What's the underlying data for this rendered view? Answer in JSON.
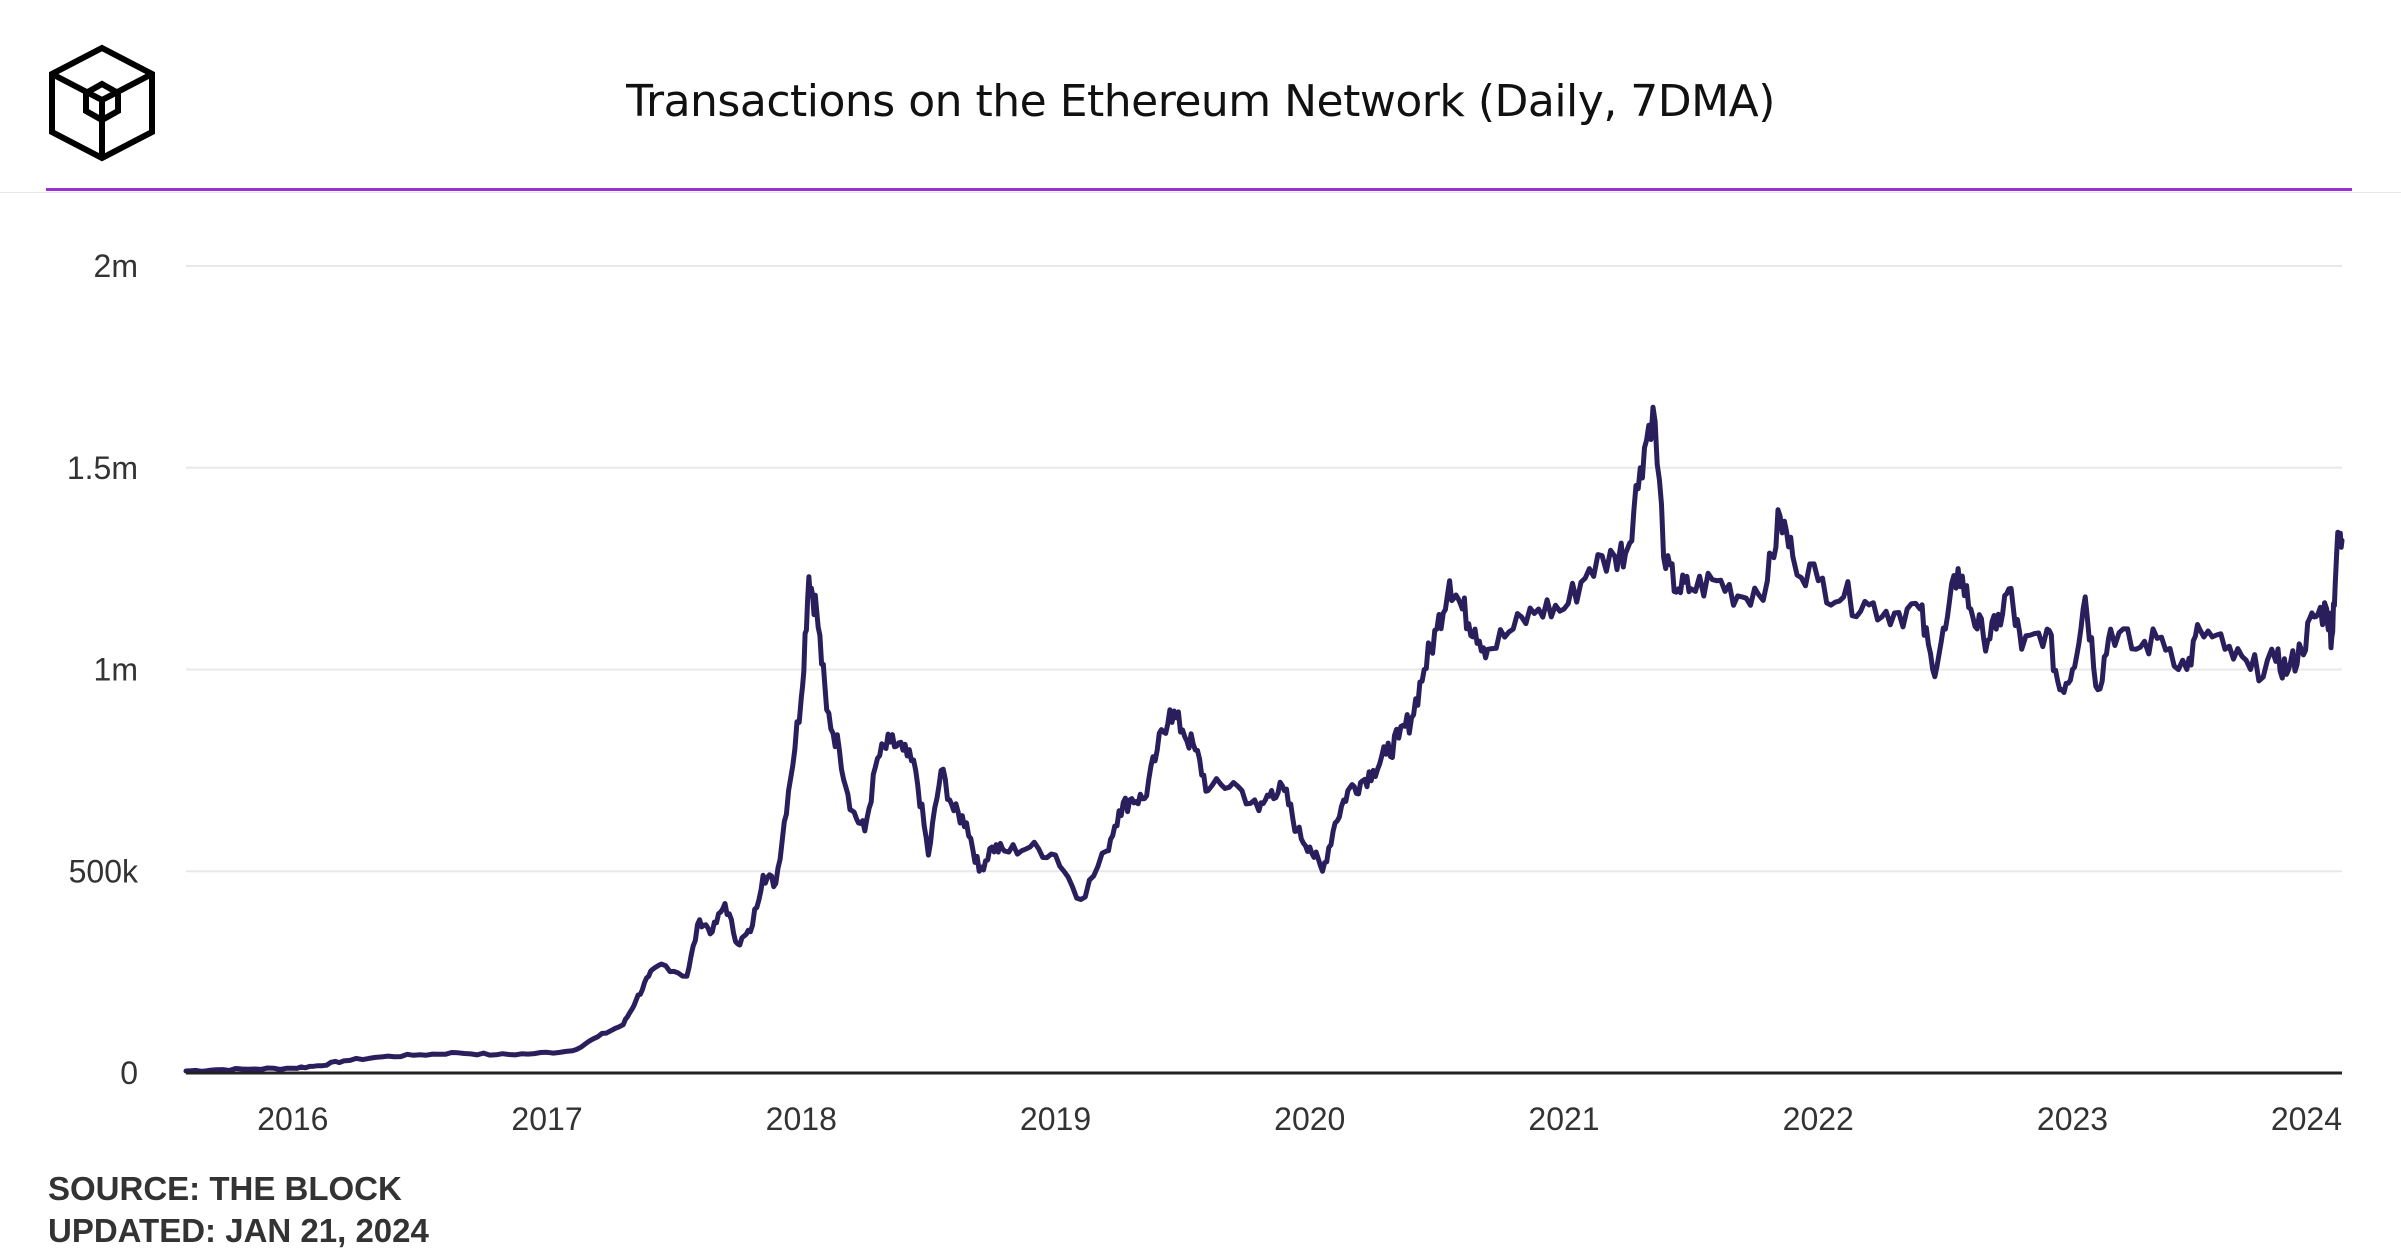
{
  "header": {
    "title": "Transactions on the Ethereum Network (Daily, 7DMA)"
  },
  "footer": {
    "source": "SOURCE: THE BLOCK",
    "updated": "UPDATED: JAN 21, 2024"
  },
  "colors": {
    "accent": "#9b30d9",
    "line": "#2a1f5c",
    "grid": "#e8e8e8",
    "axis": "#222222"
  },
  "chart_data": {
    "type": "line",
    "title": "Transactions on the Ethereum Network (Daily, 7DMA)",
    "xlabel": "",
    "ylabel": "",
    "xlim": [
      2015.58,
      2024.06
    ],
    "ylim": [
      0,
      2000000
    ],
    "yticks": [
      0,
      500000,
      1000000,
      1500000,
      2000000
    ],
    "ytick_labels": [
      "0",
      "500k",
      "1m",
      "1.5m",
      "2m"
    ],
    "xticks": [
      2016,
      2017,
      2018,
      2019,
      2020,
      2021,
      2022,
      2023,
      2024
    ],
    "xtick_labels": [
      "2016",
      "2017",
      "2018",
      "2019",
      "2020",
      "2021",
      "2022",
      "2023",
      "2024"
    ],
    "grid": true,
    "legend": "none",
    "series": [
      {
        "name": "Transactions (7DMA)",
        "points": [
          [
            2015.58,
            5000
          ],
          [
            2015.7,
            8000
          ],
          [
            2015.85,
            10000
          ],
          [
            2016.0,
            12000
          ],
          [
            2016.1,
            18000
          ],
          [
            2016.2,
            30000
          ],
          [
            2016.35,
            40000
          ],
          [
            2016.5,
            45000
          ],
          [
            2016.65,
            50000
          ],
          [
            2016.8,
            45000
          ],
          [
            2016.95,
            48000
          ],
          [
            2017.1,
            55000
          ],
          [
            2017.2,
            90000
          ],
          [
            2017.3,
            120000
          ],
          [
            2017.35,
            180000
          ],
          [
            2017.4,
            240000
          ],
          [
            2017.45,
            270000
          ],
          [
            2017.55,
            240000
          ],
          [
            2017.6,
            380000
          ],
          [
            2017.65,
            350000
          ],
          [
            2017.7,
            420000
          ],
          [
            2017.75,
            320000
          ],
          [
            2017.8,
            350000
          ],
          [
            2017.85,
            490000
          ],
          [
            2017.9,
            470000
          ],
          [
            2017.95,
            700000
          ],
          [
            2018.0,
            930000
          ],
          [
            2018.03,
            1230000
          ],
          [
            2018.06,
            1150000
          ],
          [
            2018.1,
            900000
          ],
          [
            2018.15,
            800000
          ],
          [
            2018.2,
            650000
          ],
          [
            2018.25,
            600000
          ],
          [
            2018.3,
            780000
          ],
          [
            2018.35,
            820000
          ],
          [
            2018.4,
            800000
          ],
          [
            2018.45,
            750000
          ],
          [
            2018.5,
            540000
          ],
          [
            2018.55,
            750000
          ],
          [
            2018.6,
            650000
          ],
          [
            2018.65,
            620000
          ],
          [
            2018.7,
            500000
          ],
          [
            2018.75,
            560000
          ],
          [
            2018.8,
            550000
          ],
          [
            2018.9,
            560000
          ],
          [
            2019.0,
            540000
          ],
          [
            2019.1,
            430000
          ],
          [
            2019.2,
            550000
          ],
          [
            2019.25,
            650000
          ],
          [
            2019.3,
            680000
          ],
          [
            2019.35,
            680000
          ],
          [
            2019.4,
            800000
          ],
          [
            2019.45,
            900000
          ],
          [
            2019.5,
            850000
          ],
          [
            2019.55,
            800000
          ],
          [
            2019.6,
            700000
          ],
          [
            2019.7,
            720000
          ],
          [
            2019.8,
            650000
          ],
          [
            2019.85,
            700000
          ],
          [
            2019.9,
            700000
          ],
          [
            2019.95,
            600000
          ],
          [
            2020.0,
            560000
          ],
          [
            2020.05,
            500000
          ],
          [
            2020.1,
            620000
          ],
          [
            2020.15,
            700000
          ],
          [
            2020.2,
            720000
          ],
          [
            2020.25,
            750000
          ],
          [
            2020.3,
            790000
          ],
          [
            2020.35,
            830000
          ],
          [
            2020.4,
            880000
          ],
          [
            2020.45,
            1000000
          ],
          [
            2020.5,
            1100000
          ],
          [
            2020.55,
            1220000
          ],
          [
            2020.6,
            1150000
          ],
          [
            2020.65,
            1100000
          ],
          [
            2020.7,
            1050000
          ],
          [
            2020.8,
            1100000
          ],
          [
            2020.9,
            1150000
          ],
          [
            2021.0,
            1150000
          ],
          [
            2021.1,
            1250000
          ],
          [
            2021.2,
            1280000
          ],
          [
            2021.25,
            1300000
          ],
          [
            2021.3,
            1500000
          ],
          [
            2021.35,
            1650000
          ],
          [
            2021.4,
            1250000
          ],
          [
            2021.45,
            1200000
          ],
          [
            2021.5,
            1200000
          ],
          [
            2021.6,
            1220000
          ],
          [
            2021.7,
            1180000
          ],
          [
            2021.8,
            1220000
          ],
          [
            2021.85,
            1380000
          ],
          [
            2021.9,
            1280000
          ],
          [
            2022.0,
            1220000
          ],
          [
            2022.1,
            1180000
          ],
          [
            2022.2,
            1160000
          ],
          [
            2022.3,
            1140000
          ],
          [
            2022.4,
            1150000
          ],
          [
            2022.45,
            1000000
          ],
          [
            2022.5,
            1100000
          ],
          [
            2022.55,
            1250000
          ],
          [
            2022.6,
            1150000
          ],
          [
            2022.65,
            1080000
          ],
          [
            2022.7,
            1100000
          ],
          [
            2022.75,
            1200000
          ],
          [
            2022.8,
            1050000
          ],
          [
            2022.9,
            1100000
          ],
          [
            2022.95,
            950000
          ],
          [
            2023.0,
            1000000
          ],
          [
            2023.05,
            1180000
          ],
          [
            2023.1,
            950000
          ],
          [
            2023.15,
            1100000
          ],
          [
            2023.25,
            1050000
          ],
          [
            2023.35,
            1080000
          ],
          [
            2023.45,
            1000000
          ],
          [
            2023.5,
            1100000
          ],
          [
            2023.6,
            1050000
          ],
          [
            2023.7,
            1000000
          ],
          [
            2023.8,
            1020000
          ],
          [
            2023.85,
            1000000
          ],
          [
            2023.9,
            1050000
          ],
          [
            2023.95,
            1130000
          ],
          [
            2024.0,
            1150000
          ],
          [
            2024.02,
            1080000
          ],
          [
            2024.04,
            1300000
          ],
          [
            2024.06,
            1320000
          ]
        ]
      }
    ]
  }
}
